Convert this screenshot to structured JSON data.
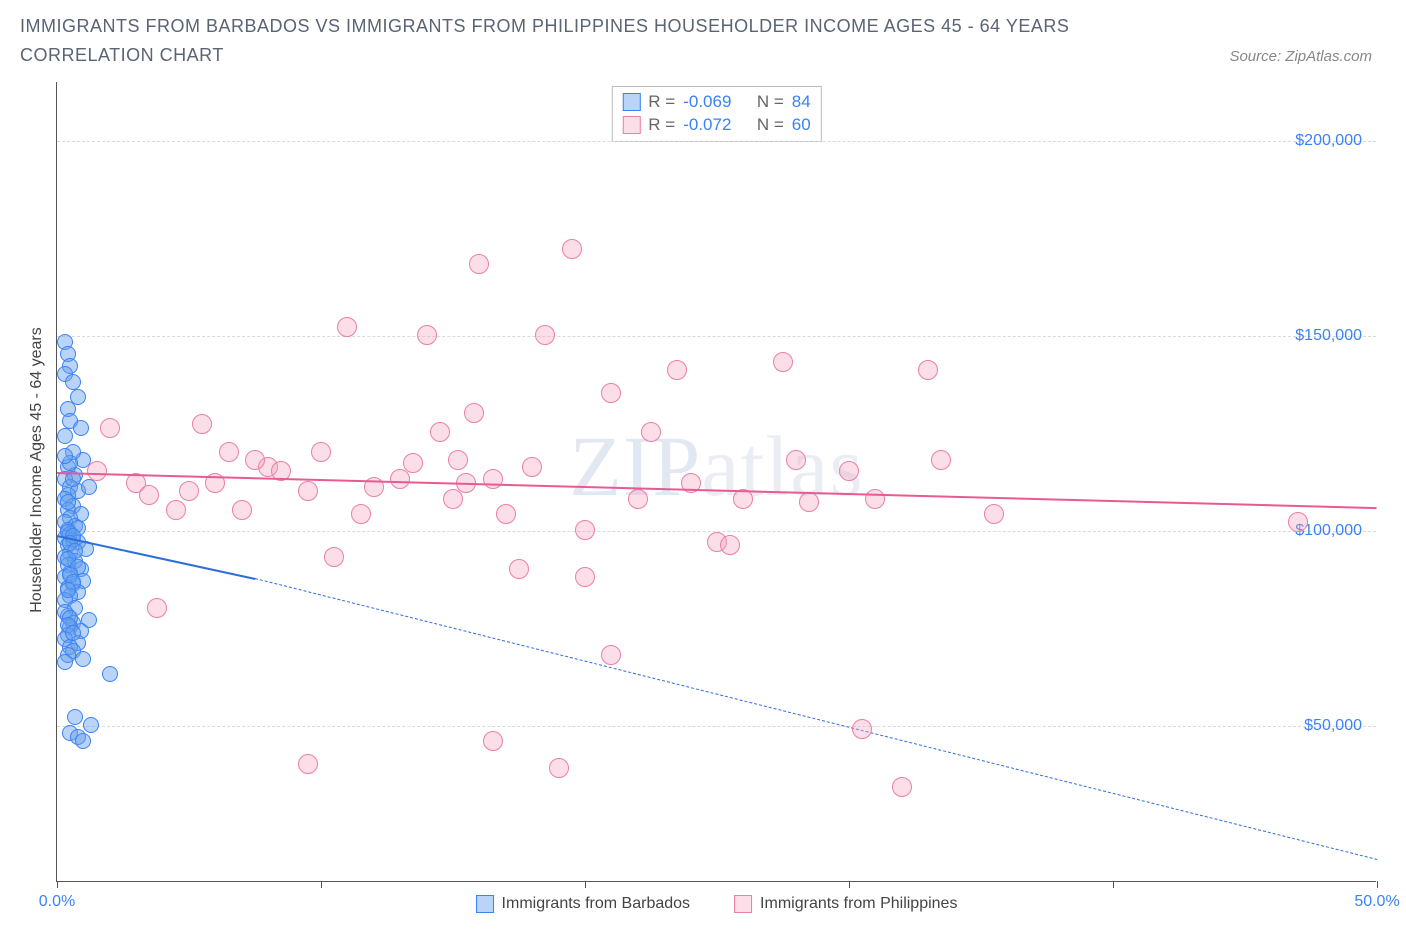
{
  "title": "IMMIGRANTS FROM BARBADOS VS IMMIGRANTS FROM PHILIPPINES HOUSEHOLDER INCOME AGES 45 - 64 YEARS CORRELATION CHART",
  "source": "Source: ZipAtlas.com",
  "watermark_main": "ZIP",
  "watermark_sub": "atlas",
  "y_axis_title": "Householder Income Ages 45 - 64 years",
  "x_limits": [
    0,
    50
  ],
  "y_limits": [
    10000,
    215000
  ],
  "x_ticks": [
    0,
    10,
    20,
    30,
    40,
    50
  ],
  "x_tick_labels": {
    "0": "0.0%",
    "50": "50.0%"
  },
  "y_gridlines": [
    50000,
    100000,
    150000,
    200000
  ],
  "y_tick_labels": [
    "$50,000",
    "$100,000",
    "$150,000",
    "$200,000"
  ],
  "series": [
    {
      "name": "Immigrants from Barbados",
      "fill": "rgba(100,160,235,0.45)",
      "stroke": "#3b82f6",
      "marker_r": 8,
      "trend_color": "#2d6fd8",
      "trend_p1": [
        0,
        99000
      ],
      "trend_p2": [
        7.5,
        88000
      ],
      "trend_dash_p2": [
        50,
        16000
      ],
      "stats_R": "-0.069",
      "stats_N": "84",
      "points": [
        [
          0.3,
          148000
        ],
        [
          0.4,
          145000
        ],
        [
          0.5,
          142000
        ],
        [
          0.3,
          140000
        ],
        [
          0.6,
          138000
        ],
        [
          0.8,
          134000
        ],
        [
          0.4,
          131000
        ],
        [
          0.5,
          128000
        ],
        [
          0.9,
          126000
        ],
        [
          0.3,
          124000
        ],
        [
          1.0,
          118000
        ],
        [
          0.6,
          120000
        ],
        [
          0.4,
          116000
        ],
        [
          0.7,
          114000
        ],
        [
          0.3,
          113000
        ],
        [
          0.5,
          111000
        ],
        [
          0.8,
          110000
        ],
        [
          0.4,
          109000
        ],
        [
          1.2,
          111000
        ],
        [
          0.3,
          108000
        ],
        [
          0.6,
          106000
        ],
        [
          0.4,
          105000
        ],
        [
          0.9,
          104000
        ],
        [
          0.5,
          103000
        ],
        [
          0.3,
          102000
        ],
        [
          0.7,
          101000
        ],
        [
          0.4,
          100000
        ],
        [
          0.5,
          99000
        ],
        [
          0.3,
          98000
        ],
        [
          0.6,
          97500
        ],
        [
          0.8,
          97000
        ],
        [
          0.4,
          96000
        ],
        [
          1.1,
          95000
        ],
        [
          0.5,
          94000
        ],
        [
          0.3,
          93000
        ],
        [
          0.7,
          92000
        ],
        [
          0.4,
          91000
        ],
        [
          0.9,
          90000
        ],
        [
          0.5,
          89000
        ],
        [
          0.3,
          88000
        ],
        [
          1.0,
          87000
        ],
        [
          0.6,
          86000
        ],
        [
          0.4,
          85000
        ],
        [
          0.8,
          84000
        ],
        [
          0.5,
          83000
        ],
        [
          0.3,
          82000
        ],
        [
          0.7,
          80000
        ],
        [
          0.4,
          78000
        ],
        [
          1.2,
          77000
        ],
        [
          0.6,
          76000
        ],
        [
          0.5,
          75000
        ],
        [
          0.9,
          74000
        ],
        [
          0.4,
          73000
        ],
        [
          0.3,
          72000
        ],
        [
          0.8,
          71000
        ],
        [
          0.5,
          70000
        ],
        [
          0.6,
          69000
        ],
        [
          0.4,
          68000
        ],
        [
          1.0,
          67000
        ],
        [
          0.3,
          66000
        ],
        [
          2.0,
          63000
        ],
        [
          0.7,
          52000
        ],
        [
          1.3,
          50000
        ],
        [
          0.5,
          48000
        ],
        [
          0.8,
          47000
        ],
        [
          1.0,
          46000
        ],
        [
          0.4,
          107000
        ],
        [
          0.6,
          113000
        ],
        [
          0.5,
          117000
        ],
        [
          0.3,
          119000
        ],
        [
          0.8,
          100500
        ],
        [
          0.4,
          99500
        ],
        [
          0.6,
          98500
        ],
        [
          0.5,
          96500
        ],
        [
          0.7,
          94500
        ],
        [
          0.4,
          92500
        ],
        [
          0.8,
          90500
        ],
        [
          0.5,
          88500
        ],
        [
          0.6,
          86500
        ],
        [
          0.4,
          84500
        ],
        [
          0.3,
          79000
        ],
        [
          0.5,
          77500
        ],
        [
          0.4,
          75500
        ],
        [
          0.6,
          73500
        ]
      ]
    },
    {
      "name": "Immigrants from Philippines",
      "fill": "rgba(244,160,190,0.35)",
      "stroke": "#ec7fa8",
      "marker_r": 10,
      "trend_color": "#e75a93",
      "trend_p1": [
        0,
        115000
      ],
      "trend_p2": [
        50,
        106000
      ],
      "stats_R": "-0.072",
      "stats_N": "60",
      "points": [
        [
          19.5,
          172000
        ],
        [
          16,
          168000
        ],
        [
          11,
          152000
        ],
        [
          14,
          150000
        ],
        [
          18.5,
          150000
        ],
        [
          23.5,
          141000
        ],
        [
          27.5,
          143000
        ],
        [
          33,
          141000
        ],
        [
          2,
          126000
        ],
        [
          5.5,
          127000
        ],
        [
          1.5,
          115000
        ],
        [
          3,
          112000
        ],
        [
          3.5,
          109000
        ],
        [
          5,
          110000
        ],
        [
          6,
          112000
        ],
        [
          7,
          105000
        ],
        [
          6.5,
          120000
        ],
        [
          8,
          116000
        ],
        [
          8.5,
          115000
        ],
        [
          9.5,
          110000
        ],
        [
          10,
          120000
        ],
        [
          10.5,
          93000
        ],
        [
          11.5,
          104000
        ],
        [
          12,
          111000
        ],
        [
          13,
          113000
        ],
        [
          13.5,
          117000
        ],
        [
          14.5,
          125000
        ],
        [
          15,
          108000
        ],
        [
          15.5,
          112000
        ],
        [
          15.8,
          130000
        ],
        [
          16.5,
          113000
        ],
        [
          17,
          104000
        ],
        [
          17.5,
          90000
        ],
        [
          18,
          116000
        ],
        [
          20,
          100000
        ],
        [
          20,
          88000
        ],
        [
          21,
          135000
        ],
        [
          22,
          108000
        ],
        [
          22.5,
          125000
        ],
        [
          24,
          112000
        ],
        [
          25,
          97000
        ],
        [
          25.5,
          96000
        ],
        [
          26,
          108000
        ],
        [
          28,
          118000
        ],
        [
          28.5,
          107000
        ],
        [
          30,
          115000
        ],
        [
          31,
          108000
        ],
        [
          33.5,
          118000
        ],
        [
          30.5,
          49000
        ],
        [
          32,
          34000
        ],
        [
          21,
          68000
        ],
        [
          16.5,
          46000
        ],
        [
          35.5,
          104000
        ],
        [
          47,
          102000
        ],
        [
          9.5,
          40000
        ],
        [
          19,
          39000
        ],
        [
          15.2,
          118000
        ],
        [
          7.5,
          118000
        ],
        [
          4.5,
          105000
        ],
        [
          3.8,
          80000
        ]
      ]
    }
  ],
  "legend": {
    "r_label": "R =",
    "n_label": "N ="
  }
}
